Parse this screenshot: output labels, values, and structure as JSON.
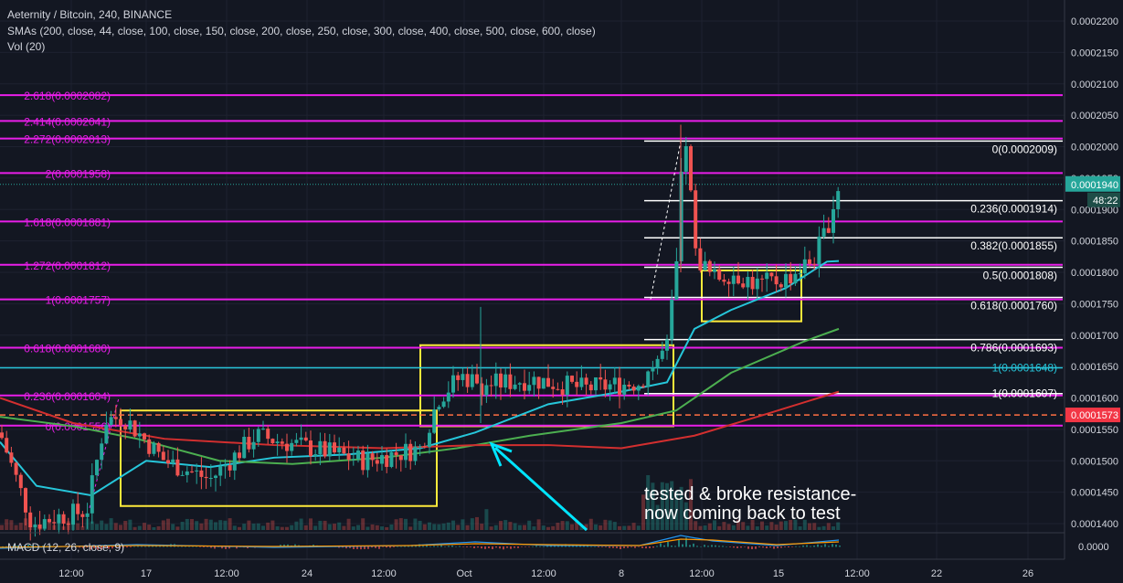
{
  "header": {
    "title": "Aeternity / Bitcoin, 240, BINANCE",
    "smas": "SMAs (200, close, 44, close, 100, close, 150, close, 200, close, 250, close, 300, close, 400, close, 500, close, 600, close)",
    "volume": "Vol (20)"
  },
  "macd_label": "MACD (12, 26, close, 9)",
  "price_tag": {
    "value": "0.0001940",
    "countdown": "48:22",
    "color": "#26a69a"
  },
  "red_tag": {
    "value": "0.0001573",
    "color": "#f23645"
  },
  "annotation": {
    "line1": "tested & broke resistance-",
    "line2": "now coming back to test"
  },
  "colors": {
    "fib_magenta": "#e91ee9",
    "fib_white": "#ffffff",
    "box_yellow": "#ffeb3b",
    "arrow_cyan": "#00e5ff",
    "up": "#26a69a",
    "down": "#ef5350",
    "sma_cyan": "#26c6da",
    "sma_green": "#4caf50",
    "sma_red": "#d32f2f"
  },
  "chart_data": {
    "type": "candlestick",
    "title": "Aeternity / Bitcoin, 240, BINANCE",
    "y_axis": {
      "min": 0.000138,
      "max": 0.000223,
      "ticks": [
        "0.0002200",
        "0.0002150",
        "0.0002100",
        "0.0002050",
        "0.0002000",
        "0.0001950",
        "0.0001900",
        "0.0001850",
        "0.0001800",
        "0.0001750",
        "0.0001700",
        "0.0001650",
        "0.0001600",
        "0.0001550",
        "0.0001500",
        "0.0001450",
        "0.0001400"
      ],
      "tick_values": [
        0.00022,
        0.000215,
        0.00021,
        0.000205,
        0.0002,
        0.000195,
        0.00019,
        0.000185,
        0.00018,
        0.000175,
        0.00017,
        0.000165,
        0.00016,
        0.000155,
        0.00015,
        0.000145,
        0.00014
      ]
    },
    "macd_axis": {
      "ticks": [
        "0.0000"
      ]
    },
    "x_axis": {
      "ticks": [
        "12:00",
        "17",
        "12:00",
        "24",
        "12:00",
        "Oct",
        "12:00",
        "8",
        "12:00",
        "15",
        "12:00",
        "22",
        "26"
      ]
    },
    "fib_left": [
      {
        "label": "2.618(0.0002082)",
        "value": 0.0002082
      },
      {
        "label": "2.414(0.0002041)",
        "value": 0.0002041
      },
      {
        "label": "2.272(0.0002013)",
        "value": 0.0002013
      },
      {
        "label": "2(0.0001958)",
        "value": 0.0001958
      },
      {
        "label": "1.618(0.0001881)",
        "value": 0.0001881
      },
      {
        "label": "1.272(0.0001812)",
        "value": 0.0001812
      },
      {
        "label": "1(0.0001757)",
        "value": 0.0001757
      },
      {
        "label": "0.618(0.0001680)",
        "value": 0.000168
      },
      {
        "label": "0.236(0.0001604)",
        "value": 0.0001604
      },
      {
        "label": "0(0.0001556)",
        "value": 0.0001556
      }
    ],
    "fib_right": [
      {
        "label": "0(0.0002009)",
        "value": 0.0002009
      },
      {
        "label": "0.236(0.0001914)",
        "value": 0.0001914
      },
      {
        "label": "0.382(0.0001855)",
        "value": 0.0001855
      },
      {
        "label": "0.5(0.0001808)",
        "value": 0.0001808
      },
      {
        "label": "0.618(0.0001760)",
        "value": 0.000176
      },
      {
        "label": "0.786(0.0001693)",
        "value": 0.0001693
      },
      {
        "label": "1(0.0001607)",
        "value": 0.0001607
      }
    ],
    "cyan_line": {
      "label": "1(0.0001648)",
      "value": 0.0001648
    },
    "current_price": 0.000194,
    "red_dashed": 0.0001573,
    "zones": [
      {
        "y_high": 0.000158,
        "y_low": 0.0001428
      },
      {
        "y_high": 0.0001684,
        "y_low": 0.0001555
      },
      {
        "y_high": 0.0001803,
        "y_low": 0.0001722
      }
    ]
  }
}
